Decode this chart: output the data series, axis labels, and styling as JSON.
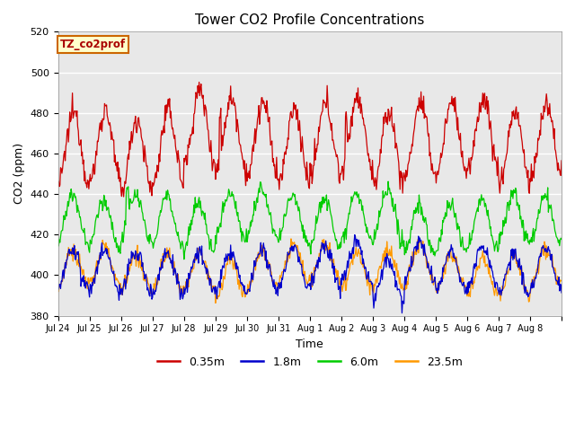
{
  "title": "Tower CO2 Profile Concentrations",
  "xlabel": "Time",
  "ylabel": "CO2 (ppm)",
  "ylim": [
    380,
    520
  ],
  "yticks": [
    380,
    400,
    420,
    440,
    460,
    480,
    500,
    520
  ],
  "tag_label": "TZ_co2prof",
  "tag_facecolor": "#ffffcc",
  "tag_edgecolor": "#cc6600",
  "plot_bg_color": "#e8e8e8",
  "fig_bg_color": "#ffffff",
  "grid_color": "#ffffff",
  "n_days": 16,
  "n_per_day": 48,
  "xtick_labels": [
    "Jul 24",
    "Jul 25",
    "Jul 26",
    "Jul 27",
    "Jul 28",
    "Jul 29",
    "Jul 30",
    "Jul 31",
    "Aug 1",
    "Aug 2",
    "Aug 3",
    "Aug 4",
    "Aug 5",
    "Aug 6",
    "Aug 7",
    "Aug 8"
  ],
  "legend_labels": [
    "0.35m",
    "1.8m",
    "6.0m",
    "23.5m"
  ],
  "legend_colors": [
    "#cc0000",
    "#0000cc",
    "#00cc00",
    "#ff9900"
  ],
  "red_base": 465,
  "red_diurnal_amp": 18,
  "red_noise": 3,
  "green_base": 427,
  "green_diurnal_amp": 12,
  "green_noise": 2,
  "blue_base": 404,
  "blue_diurnal_amp": 10,
  "blue_noise": 2,
  "orange_base": 402,
  "orange_diurnal_amp": 9,
  "orange_noise": 2
}
